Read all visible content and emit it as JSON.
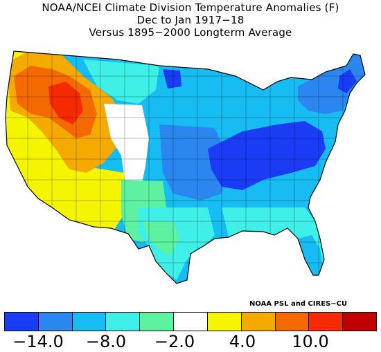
{
  "title": {
    "line1": "NOAA/NCEI Climate Division Temperature Anomalies (F)",
    "line2": "Dec to Jan 1917−18",
    "line3": "Versus 1895−2000 Longterm Average"
  },
  "credit": "NOAA PSL and CIRES−CU",
  "map_data": {
    "type": "choropleth",
    "region": "Contiguous United States climate divisions",
    "variable": "Temperature anomaly",
    "units": "F",
    "pattern": [
      {
        "area": "Pacific Northwest and Northern Rockies (Oregon, Idaho, Montana west)",
        "bin": "4 to 10, locally 10 to 13"
      },
      {
        "area": "Great Basin and interior West (Nevada, Utah, Wyoming)",
        "bin": "1 to 7"
      },
      {
        "area": "California and Southwest",
        "bin": "1 to 4"
      },
      {
        "area": "Northern Plains and Upper Midwest",
        "bin": "-11 to -5, locally -14 to -11"
      },
      {
        "area": "Central Plains and Southern Plains",
        "bin": "-8 to -2"
      },
      {
        "area": "Ohio Valley, Tennessee Valley and Mid-Atlantic",
        "bin": "-14 to -11"
      },
      {
        "area": "Great Lakes and Northeast",
        "bin": "-11 to -8, locally -14 to -11"
      },
      {
        "area": "Southeast and Gulf Coast",
        "bin": "-8 to -5"
      },
      {
        "area": "Texas and New Mexico",
        "bin": "-5 to -2"
      },
      {
        "area": "Colorado Front Range area",
        "bin": "-2 to 1"
      }
    ]
  },
  "colorbar": {
    "colors": [
      "#1a3cf5",
      "#2b86f0",
      "#17bcf2",
      "#3ff0e8",
      "#5cf2a2",
      "#ffffff",
      "#f5f500",
      "#f5aa00",
      "#f56a00",
      "#f52a00",
      "#c00000"
    ],
    "ticks": [
      "−14.0",
      "−8.0",
      "−2.0",
      "4.0",
      "10.0"
    ]
  }
}
